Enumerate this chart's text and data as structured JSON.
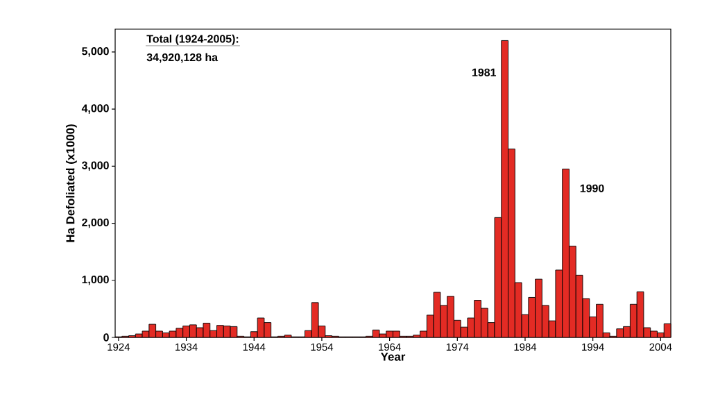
{
  "chart_data": {
    "type": "bar",
    "x": [
      1924,
      1925,
      1926,
      1927,
      1928,
      1929,
      1930,
      1931,
      1932,
      1933,
      1934,
      1935,
      1936,
      1937,
      1938,
      1939,
      1940,
      1941,
      1942,
      1943,
      1944,
      1945,
      1946,
      1947,
      1948,
      1949,
      1950,
      1951,
      1952,
      1953,
      1954,
      1955,
      1956,
      1957,
      1958,
      1959,
      1960,
      1961,
      1962,
      1963,
      1964,
      1965,
      1966,
      1967,
      1968,
      1969,
      1970,
      1971,
      1972,
      1973,
      1974,
      1975,
      1976,
      1977,
      1978,
      1979,
      1980,
      1981,
      1982,
      1983,
      1984,
      1985,
      1986,
      1987,
      1988,
      1989,
      1990,
      1991,
      1992,
      1993,
      1994,
      1995,
      1996,
      1997,
      1998,
      1999,
      2000,
      2001,
      2002,
      2003,
      2004,
      2005
    ],
    "values": [
      10,
      20,
      30,
      60,
      110,
      230,
      110,
      80,
      110,
      160,
      200,
      220,
      170,
      250,
      120,
      210,
      200,
      190,
      20,
      10,
      100,
      340,
      260,
      10,
      20,
      40,
      10,
      10,
      120,
      610,
      200,
      30,
      20,
      10,
      10,
      10,
      10,
      20,
      130,
      60,
      110,
      110,
      20,
      20,
      40,
      110,
      390,
      790,
      560,
      720,
      300,
      180,
      340,
      650,
      510,
      260,
      2100,
      5200,
      3300,
      960,
      400,
      700,
      1020,
      560,
      290,
      1180,
      2950,
      1600,
      1090,
      680,
      360,
      580,
      80,
      20,
      150,
      190,
      580,
      800,
      170,
      110,
      80,
      240
    ],
    "color": "#e32b24",
    "xlim": [
      1923.5,
      2005.5
    ],
    "xticks": [
      1924,
      1934,
      1944,
      1954,
      1964,
      1974,
      1984,
      1994,
      2004
    ],
    "ylim": [
      0,
      5400
    ],
    "yticks": [
      0,
      {
        "value": 1000,
        "label": "1,000"
      },
      {
        "value": 2000,
        "label": "2,000"
      },
      {
        "value": 3000,
        "label": "3,000"
      },
      {
        "value": 4000,
        "label": "4,000"
      },
      {
        "value": 5000,
        "label": "5,000"
      }
    ],
    "xlabel": "Year",
    "ylabel": "Ha Defoliated (x1000)",
    "annotations": [
      "Total (1924-2005):",
      "34,920,128 ha",
      {
        "text": "1981",
        "x": 1981,
        "y": 5200
      },
      {
        "text": "1990",
        "x": 1990,
        "y": 2950
      }
    ]
  }
}
